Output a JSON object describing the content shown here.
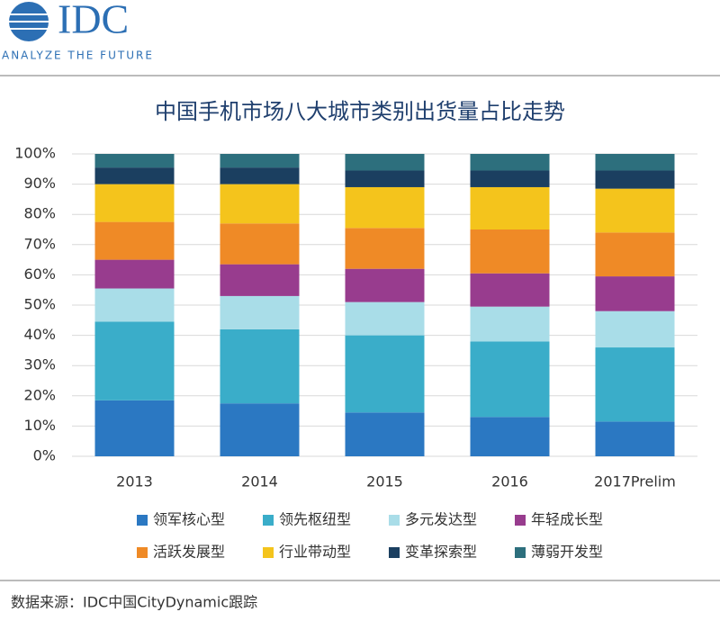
{
  "header": {
    "logo": "IDC",
    "tagline": "ANALYZE THE FUTURE"
  },
  "chart_data": {
    "type": "stacked_bar",
    "title": "中国手机市场八大城市类别出货量占比走势",
    "categories": [
      "2013",
      "2014",
      "2015",
      "2016",
      "2017Prelim"
    ],
    "series": [
      {
        "name": "领军核心型",
        "color": "#2b78c2",
        "values": [
          18.5,
          17.5,
          14.5,
          13,
          11.5
        ]
      },
      {
        "name": "领先枢纽型",
        "color": "#3aadc9",
        "values": [
          26,
          24.5,
          25.5,
          25,
          24.5
        ]
      },
      {
        "name": "多元发达型",
        "color": "#a9dde8",
        "values": [
          11,
          11,
          11,
          11.5,
          12
        ]
      },
      {
        "name": "年轻成长型",
        "color": "#983c8e",
        "values": [
          9.5,
          10.5,
          11,
          11,
          11.5
        ]
      },
      {
        "name": "活跃发展型",
        "color": "#ef8a26",
        "values": [
          12.5,
          13.5,
          13.5,
          14.5,
          14.5
        ]
      },
      {
        "name": "行业带动型",
        "color": "#f4c41c",
        "values": [
          12.5,
          13,
          13.5,
          14,
          14.5
        ]
      },
      {
        "name": "变革探索型",
        "color": "#1b3f60",
        "values": [
          5.5,
          5.5,
          5.5,
          5.5,
          6
        ]
      },
      {
        "name": "薄弱开发型",
        "color": "#2d6f7d",
        "values": [
          4.5,
          4.5,
          5.5,
          5.5,
          5.5
        ]
      }
    ],
    "ylim": [
      0,
      100
    ],
    "yticks": [
      {
        "value": 0,
        "label": "0%"
      },
      {
        "value": 10,
        "label": "10%"
      },
      {
        "value": 20,
        "label": "20%"
      },
      {
        "value": 30,
        "label": "30%"
      },
      {
        "value": 40,
        "label": "40%"
      },
      {
        "value": 50,
        "label": "50%"
      },
      {
        "value": 60,
        "label": "60%"
      },
      {
        "value": 70,
        "label": "70%"
      },
      {
        "value": 80,
        "label": "80%"
      },
      {
        "value": 90,
        "label": "90%"
      },
      {
        "value": 100,
        "label": "100%"
      }
    ],
    "grid": true
  },
  "footer": {
    "source": "数据来源：IDC中国CityDynamic跟踪"
  }
}
